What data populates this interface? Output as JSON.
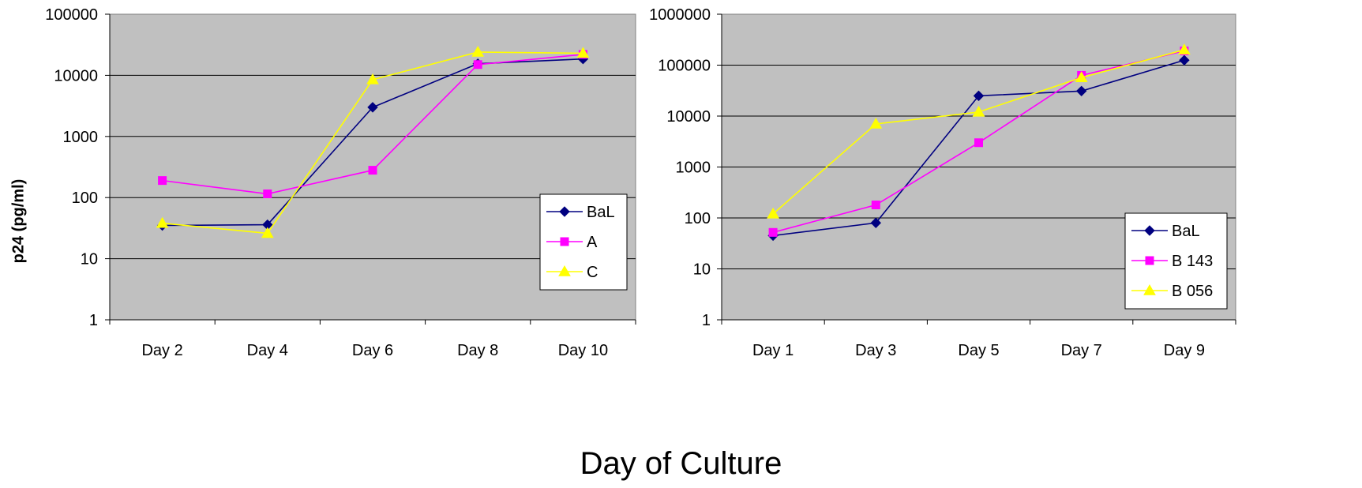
{
  "shared": {
    "ylabel": "p24 (pg/ml)",
    "xlabel": "Day of Culture"
  },
  "chart_data": [
    {
      "type": "line",
      "yscale": "log",
      "ylim": [
        1,
        100000
      ],
      "yticks": [
        "1",
        "10",
        "100",
        "1000",
        "10000",
        "100000"
      ],
      "categories": [
        "Day 2",
        "Day 4",
        "Day 6",
        "Day 8",
        "Day 10"
      ],
      "grid": true,
      "legend": "right",
      "series": [
        {
          "name": "BaL",
          "color": "#000080",
          "marker": "diamond",
          "values": [
            35,
            36,
            3000,
            15500,
            18500
          ]
        },
        {
          "name": "A",
          "color": "#FF00FF",
          "marker": "square",
          "values": [
            190,
            115,
            280,
            15000,
            22000
          ]
        },
        {
          "name": "C",
          "color": "#FFFF00",
          "marker": "triangle",
          "values": [
            38,
            26,
            8500,
            24000,
            23000
          ]
        }
      ]
    },
    {
      "type": "line",
      "yscale": "log",
      "ylim": [
        1,
        1000000
      ],
      "yticks": [
        "1",
        "10",
        "100",
        "1000",
        "10000",
        "100000",
        "1000000"
      ],
      "categories": [
        "Day 1",
        "Day 3",
        "Day 5",
        "Day 7",
        "Day 9"
      ],
      "grid": true,
      "legend": "right",
      "series": [
        {
          "name": "BaL",
          "color": "#000080",
          "marker": "diamond",
          "values": [
            45,
            80,
            25000,
            31000,
            125000
          ]
        },
        {
          "name": "B 143",
          "color": "#FF00FF",
          "marker": "square",
          "values": [
            52,
            180,
            3000,
            63000,
            190000
          ]
        },
        {
          "name": "B 056",
          "color": "#FFFF00",
          "marker": "triangle",
          "values": [
            120,
            7000,
            12000,
            57000,
            200000
          ]
        }
      ]
    }
  ]
}
